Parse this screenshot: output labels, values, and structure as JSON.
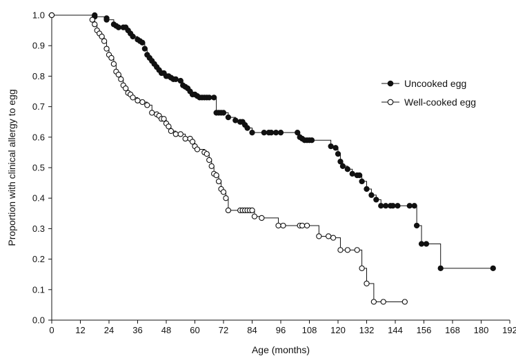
{
  "chart_data": {
    "type": "line",
    "title": "",
    "xlabel": "Age (months)",
    "ylabel": "Proportion with clinical allergy to egg",
    "xlim": [
      0,
      192
    ],
    "ylim": [
      0,
      1
    ],
    "x_ticks": [
      "0",
      "12",
      "24",
      "36",
      "48",
      "60",
      "72",
      "84",
      "96",
      "108",
      "120",
      "132",
      "144",
      "156",
      "168",
      "180",
      "192"
    ],
    "y_ticks": [
      "0.0",
      "0.1",
      "0.2",
      "0.3",
      "0.4",
      "0.5",
      "0.6",
      "0.7",
      "0.8",
      "0.9",
      "1.0"
    ],
    "grid": false,
    "legend_position": "right",
    "series": [
      {
        "name": "Uncooked egg",
        "marker": "filled-circle",
        "color": "#111111",
        "points": [
          [
            0,
            1.0
          ],
          [
            18,
            1.0
          ],
          [
            18,
            0.995
          ],
          [
            23,
            0.99
          ],
          [
            23,
            0.985
          ],
          [
            26,
            0.97
          ],
          [
            27,
            0.965
          ],
          [
            28,
            0.96
          ],
          [
            30,
            0.96
          ],
          [
            31,
            0.96
          ],
          [
            32,
            0.95
          ],
          [
            33,
            0.94
          ],
          [
            34,
            0.93
          ],
          [
            36,
            0.92
          ],
          [
            37,
            0.915
          ],
          [
            38,
            0.91
          ],
          [
            39,
            0.89
          ],
          [
            40,
            0.87
          ],
          [
            41,
            0.86
          ],
          [
            42,
            0.85
          ],
          [
            43,
            0.84
          ],
          [
            44,
            0.83
          ],
          [
            45,
            0.82
          ],
          [
            46,
            0.81
          ],
          [
            47,
            0.81
          ],
          [
            48,
            0.8
          ],
          [
            49,
            0.8
          ],
          [
            50,
            0.795
          ],
          [
            51,
            0.79
          ],
          [
            52,
            0.79
          ],
          [
            54,
            0.785
          ],
          [
            55,
            0.77
          ],
          [
            56,
            0.765
          ],
          [
            57,
            0.76
          ],
          [
            58,
            0.75
          ],
          [
            59,
            0.74
          ],
          [
            60,
            0.74
          ],
          [
            61,
            0.735
          ],
          [
            62,
            0.73
          ],
          [
            63,
            0.73
          ],
          [
            64,
            0.73
          ],
          [
            65,
            0.73
          ],
          [
            66,
            0.73
          ],
          [
            68,
            0.73
          ],
          [
            69,
            0.68
          ],
          [
            70,
            0.68
          ],
          [
            71,
            0.68
          ],
          [
            72,
            0.68
          ],
          [
            74,
            0.665
          ],
          [
            77,
            0.655
          ],
          [
            79,
            0.65
          ],
          [
            80,
            0.65
          ],
          [
            81,
            0.64
          ],
          [
            82,
            0.63
          ],
          [
            84,
            0.615
          ],
          [
            89,
            0.615
          ],
          [
            91,
            0.615
          ],
          [
            92,
            0.615
          ],
          [
            94,
            0.615
          ],
          [
            96,
            0.615
          ],
          [
            103,
            0.615
          ],
          [
            104,
            0.6
          ],
          [
            105,
            0.595
          ],
          [
            106,
            0.59
          ],
          [
            107,
            0.59
          ],
          [
            108,
            0.59
          ],
          [
            109,
            0.59
          ],
          [
            117,
            0.57
          ],
          [
            119,
            0.565
          ],
          [
            120,
            0.545
          ],
          [
            121,
            0.52
          ],
          [
            122,
            0.505
          ],
          [
            124,
            0.495
          ],
          [
            126,
            0.48
          ],
          [
            128,
            0.475
          ],
          [
            129,
            0.475
          ],
          [
            130,
            0.455
          ],
          [
            132,
            0.43
          ],
          [
            134,
            0.41
          ],
          [
            136,
            0.395
          ],
          [
            138,
            0.375
          ],
          [
            140,
            0.375
          ],
          [
            142,
            0.375
          ],
          [
            143,
            0.375
          ],
          [
            145,
            0.375
          ],
          [
            150,
            0.375
          ],
          [
            152,
            0.375
          ],
          [
            153,
            0.31
          ],
          [
            155,
            0.25
          ],
          [
            157,
            0.25
          ],
          [
            163,
            0.17
          ],
          [
            185,
            0.17
          ]
        ]
      },
      {
        "name": "Well-cooked egg",
        "marker": "open-circle",
        "color": "#111111",
        "points": [
          [
            0,
            1.0
          ],
          [
            17,
            0.985
          ],
          [
            18,
            0.97
          ],
          [
            19,
            0.95
          ],
          [
            20,
            0.94
          ],
          [
            21,
            0.93
          ],
          [
            22,
            0.915
          ],
          [
            23,
            0.89
          ],
          [
            24,
            0.87
          ],
          [
            25,
            0.86
          ],
          [
            26,
            0.84
          ],
          [
            27,
            0.815
          ],
          [
            28,
            0.805
          ],
          [
            29,
            0.79
          ],
          [
            30,
            0.77
          ],
          [
            31,
            0.76
          ],
          [
            32,
            0.745
          ],
          [
            33,
            0.74
          ],
          [
            34,
            0.73
          ],
          [
            36,
            0.72
          ],
          [
            38,
            0.715
          ],
          [
            40,
            0.705
          ],
          [
            42,
            0.68
          ],
          [
            44,
            0.675
          ],
          [
            45,
            0.67
          ],
          [
            46,
            0.66
          ],
          [
            47,
            0.66
          ],
          [
            48,
            0.645
          ],
          [
            49,
            0.635
          ],
          [
            50,
            0.62
          ],
          [
            52,
            0.61
          ],
          [
            54,
            0.61
          ],
          [
            56,
            0.595
          ],
          [
            58,
            0.595
          ],
          [
            59,
            0.585
          ],
          [
            60,
            0.57
          ],
          [
            61,
            0.56
          ],
          [
            64,
            0.55
          ],
          [
            65,
            0.545
          ],
          [
            66,
            0.525
          ],
          [
            67,
            0.505
          ],
          [
            68,
            0.48
          ],
          [
            69,
            0.475
          ],
          [
            70,
            0.455
          ],
          [
            71,
            0.43
          ],
          [
            72,
            0.42
          ],
          [
            73,
            0.4
          ],
          [
            74,
            0.36
          ],
          [
            79,
            0.36
          ],
          [
            80,
            0.36
          ],
          [
            81,
            0.36
          ],
          [
            82,
            0.36
          ],
          [
            83,
            0.36
          ],
          [
            84,
            0.36
          ],
          [
            85,
            0.34
          ],
          [
            88,
            0.335
          ],
          [
            95,
            0.31
          ],
          [
            97,
            0.31
          ],
          [
            104,
            0.31
          ],
          [
            105,
            0.31
          ],
          [
            107,
            0.31
          ],
          [
            112,
            0.275
          ],
          [
            116,
            0.275
          ],
          [
            118,
            0.27
          ],
          [
            121,
            0.23
          ],
          [
            124,
            0.23
          ],
          [
            128,
            0.23
          ],
          [
            130,
            0.17
          ],
          [
            132,
            0.12
          ],
          [
            135,
            0.06
          ],
          [
            139,
            0.06
          ],
          [
            148,
            0.06
          ]
        ]
      }
    ]
  }
}
